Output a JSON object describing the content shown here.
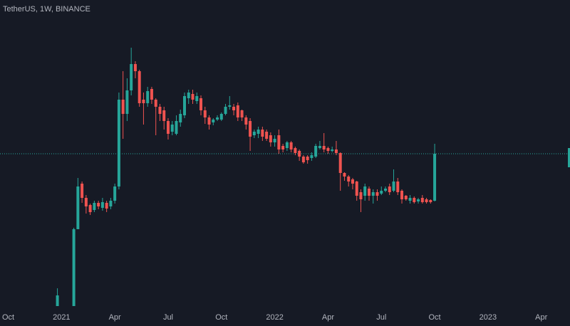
{
  "chart_data": {
    "type": "candlestick",
    "title": "TetherUS, 1W, BINANCE",
    "x": [
      12,
      16,
      17,
      18,
      19,
      20,
      21,
      22,
      23,
      24,
      25,
      26,
      27,
      28,
      29,
      30,
      31,
      32,
      33,
      34,
      35,
      36,
      37,
      38,
      39,
      40,
      41,
      42,
      43,
      44,
      45,
      46,
      47,
      48,
      49,
      50,
      51,
      52,
      53,
      54,
      55,
      56,
      57,
      58,
      59,
      60,
      61,
      62,
      63,
      64,
      65,
      66,
      67,
      68,
      69,
      70,
      71,
      72,
      73,
      74,
      75,
      76,
      77,
      78,
      79,
      80,
      81,
      82,
      83,
      84,
      85,
      86,
      87,
      88,
      89,
      90,
      91,
      92,
      93,
      94,
      95,
      96,
      97,
      98,
      99,
      100,
      101,
      102,
      103,
      104
    ],
    "open": [
      0,
      0,
      27,
      43,
      38,
      35.5,
      33.75,
      36.25,
      34.5,
      36.25,
      35,
      37,
      42,
      72.5,
      67.5,
      75.75,
      85,
      82.5,
      72.5,
      71.25,
      76.25,
      72.5,
      70,
      68.75,
      65,
      61.25,
      60.5,
      64.5,
      67,
      73,
      74.5,
      72,
      73,
      68.75,
      66.25,
      64.5,
      65.5,
      65.5,
      67.5,
      70,
      70,
      70.5,
      68.75,
      66.25,
      65,
      60,
      60.5,
      62,
      61.25,
      60,
      57.5,
      60,
      56.25,
      55.5,
      57.5,
      55.5,
      54.5,
      52.5,
      52.5,
      52,
      52.5,
      55.5,
      56.25,
      55.5,
      54.5,
      55,
      53.75,
      46.75,
      45.5,
      44.5,
      43.75,
      40,
      38.75,
      41.25,
      38.75,
      40,
      39.5,
      40.5,
      42,
      40.5,
      43.75,
      40.5,
      38.75,
      37,
      38,
      36.75,
      38,
      37.5,
      37.25,
      37
    ],
    "high": [
      6.25,
      27.5,
      45,
      43.75,
      39,
      36,
      37,
      37,
      38,
      37,
      38,
      43,
      75,
      82.5,
      80,
      90.75,
      86,
      83,
      75,
      77,
      77,
      73,
      71,
      70,
      66,
      65,
      67,
      69,
      75,
      76,
      76,
      75,
      74,
      70,
      67,
      66,
      67,
      68,
      71,
      73.75,
      71,
      71.5,
      69,
      67,
      66,
      62,
      63,
      63,
      62,
      61,
      60,
      62,
      57,
      58,
      58,
      56,
      55,
      53,
      53,
      54,
      57,
      58,
      60.75,
      56,
      56,
      58,
      54,
      47,
      46,
      45,
      44,
      41,
      43,
      42,
      41,
      41,
      42,
      42,
      43,
      48,
      45,
      41,
      39,
      39,
      38.5,
      38,
      39,
      38,
      37.5,
      57
    ],
    "low": [
      0,
      0,
      27,
      36.25,
      32.5,
      32,
      33,
      34,
      33.5,
      33,
      34,
      36,
      41,
      58.75,
      65,
      74,
      80,
      70,
      63.75,
      70,
      71,
      60,
      65,
      62,
      58.5,
      60,
      60,
      63,
      66,
      71,
      71,
      71,
      67,
      64,
      62,
      63.5,
      65,
      65,
      67,
      69,
      67,
      65,
      65,
      62,
      54.5,
      59,
      59,
      58,
      58,
      56,
      56,
      53.5,
      54,
      54.5,
      54,
      53,
      51,
      50,
      50,
      51,
      52,
      55,
      54,
      53.5,
      54,
      53,
      40.5,
      44,
      42,
      41,
      37,
      33,
      37,
      37,
      36,
      37,
      39,
      40,
      39,
      40,
      39,
      36,
      37,
      36,
      36,
      36,
      36,
      36,
      36,
      36.75
    ],
    "close": [
      3.75,
      27,
      42,
      38,
      35,
      33,
      36.25,
      35,
      36.5,
      34.25,
      37,
      42,
      72.5,
      67.5,
      75.75,
      85,
      82.5,
      71.25,
      71.25,
      75.5,
      72.5,
      70,
      67.5,
      65,
      60.5,
      63.75,
      65,
      67.5,
      73.75,
      75,
      72.5,
      73.75,
      68.75,
      66.25,
      63.75,
      65.5,
      66.25,
      67.5,
      70,
      70.5,
      68.75,
      66.25,
      66.25,
      63.75,
      59.5,
      61.25,
      62,
      59.5,
      58.75,
      57.5,
      58.75,
      55,
      55,
      57.5,
      55,
      53.75,
      52.5,
      50.5,
      51.25,
      53,
      56.25,
      56.25,
      55,
      54.5,
      55,
      53.75,
      46.75,
      45.5,
      43.75,
      43,
      38.75,
      37.5,
      42,
      38.75,
      40,
      38.75,
      40.5,
      41.25,
      40,
      43.75,
      40,
      37.5,
      37.5,
      38,
      36.5,
      37.5,
      36.5,
      36.5,
      36.5,
      53.5
    ],
    "up_color": "#26a69a",
    "down_color": "#ef5350",
    "xlim": [
      -2,
      137
    ],
    "xticks": [
      {
        "value": 0,
        "label": "Oct"
      },
      {
        "value": 13,
        "label": "2021"
      },
      {
        "value": 26,
        "label": "Apr"
      },
      {
        "value": 39,
        "label": "Jul"
      },
      {
        "value": 52,
        "label": "Oct"
      },
      {
        "value": 65,
        "label": "2022"
      },
      {
        "value": 78,
        "label": "Apr"
      },
      {
        "value": 91,
        "label": "Jul"
      },
      {
        "value": 104,
        "label": "Oct"
      },
      {
        "value": 117,
        "label": "2023"
      },
      {
        "value": 130,
        "label": "Apr"
      }
    ],
    "ylim": [
      0,
      100
    ]
  }
}
